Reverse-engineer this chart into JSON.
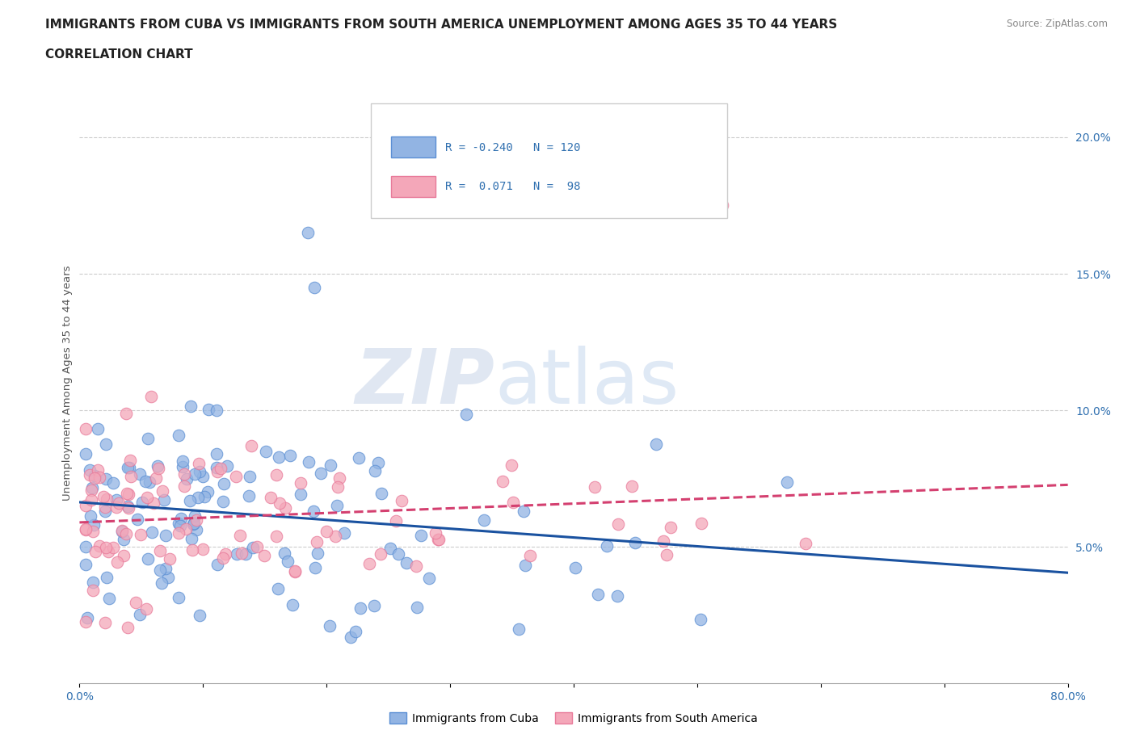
{
  "title_line1": "IMMIGRANTS FROM CUBA VS IMMIGRANTS FROM SOUTH AMERICA UNEMPLOYMENT AMONG AGES 35 TO 44 YEARS",
  "title_line2": "CORRELATION CHART",
  "source": "Source: ZipAtlas.com",
  "ylabel": "Unemployment Among Ages 35 to 44 years",
  "xlim": [
    0.0,
    0.8
  ],
  "ylim": [
    0.0,
    0.22
  ],
  "xticks": [
    0.0,
    0.1,
    0.2,
    0.3,
    0.4,
    0.5,
    0.6,
    0.7,
    0.8
  ],
  "yticks": [
    0.0,
    0.05,
    0.1,
    0.15,
    0.2
  ],
  "cuba_color": "#92b4e3",
  "cuba_edge_color": "#5b8fd4",
  "sa_color": "#f4a7b9",
  "sa_edge_color": "#e87a9a",
  "cuba_line_color": "#1a52a0",
  "sa_line_color": "#d44070",
  "cuba_R": -0.24,
  "cuba_N": 120,
  "sa_R": 0.071,
  "sa_N": 98,
  "legend_label_cuba": "Immigrants from Cuba",
  "legend_label_sa": "Immigrants from South America",
  "watermark_zip": "ZIP",
  "watermark_atlas": "atlas",
  "background_color": "#ffffff",
  "grid_color": "#cccccc",
  "tick_color": "#3070b0",
  "title_color": "#222222"
}
